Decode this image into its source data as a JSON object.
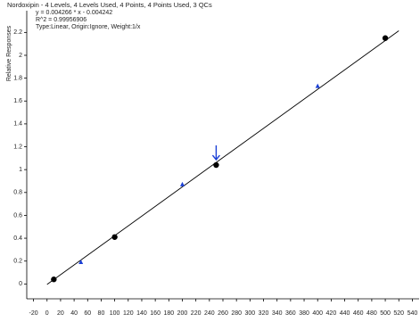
{
  "chart_data": {
    "type": "scatter",
    "title": "Nordoxipin - 4 Levels, 4 Levels Used, 4 Points, 4 Points Used, 3 QCs",
    "annotations": [
      "y = 0.004266 * x - 0.004242",
      "R^2 = 0.99956906",
      "Type:Linear, Origin:Ignore, Weight:1/x"
    ],
    "ylabel": "Relative Responses",
    "xlim": [
      -30,
      550
    ],
    "xticks": [
      -20,
      0,
      20,
      40,
      60,
      80,
      100,
      120,
      140,
      160,
      180,
      200,
      220,
      240,
      260,
      280,
      300,
      320,
      340,
      360,
      380,
      400,
      420,
      440,
      460,
      480,
      500,
      520,
      540
    ],
    "ylim": [
      -0.13,
      2.39
    ],
    "yticks": [
      0,
      0.2,
      0.4,
      0.6,
      0.8,
      1,
      1.2,
      1.4,
      1.6,
      1.8,
      2,
      2.2
    ],
    "calibrators": {
      "color": "#000000",
      "x": [
        10,
        100,
        250,
        500
      ],
      "values": [
        0.04,
        0.41,
        1.04,
        2.15
      ]
    },
    "qcs": {
      "color": "#1a3fd6",
      "x": [
        50,
        200,
        400
      ],
      "values": [
        0.19,
        0.87,
        1.73
      ]
    },
    "fit_line": {
      "color": "#000000",
      "x": [
        0,
        520
      ],
      "values": [
        -0.0042,
        2.2141
      ]
    }
  }
}
